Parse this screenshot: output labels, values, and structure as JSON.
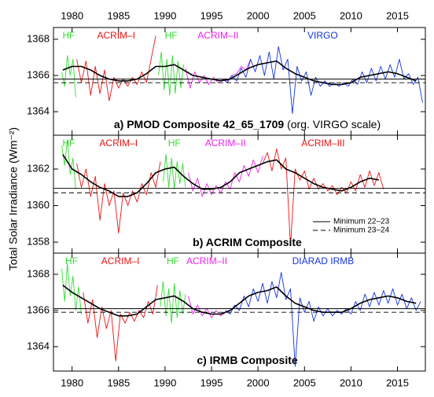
{
  "y_axis_label": "Total Solar Irradiance (Wm⁻²)",
  "chart_data": [
    {
      "type": "line",
      "title": "a) PMOD Composite 42_65_1709",
      "subtitle": "(org. VIRGO scale)",
      "xlim": [
        1978,
        2018
      ],
      "xticks": [
        1980,
        1985,
        1990,
        1995,
        2000,
        2005,
        2010,
        2015
      ],
      "ylim": [
        1362.7,
        1368.65
      ],
      "yticks": [
        1364,
        1366,
        1368
      ],
      "reference_lines": [
        {
          "value": 1365.8,
          "dash": false
        },
        {
          "value": 1365.6,
          "dash": true
        }
      ],
      "series": [
        {
          "name": "HF",
          "color": "#33dd33",
          "x": [
            1978.9,
            1979.2,
            1979.5,
            1979.8,
            1980.1,
            1980.4
          ],
          "values": [
            1366.2,
            1365.4,
            1367.1,
            1366.0,
            1366.9,
            1364.8
          ]
        },
        {
          "name": "ACRIM–I",
          "color": "#ee1111",
          "x": [
            1980.5,
            1981,
            1981.5,
            1982,
            1982.5,
            1983,
            1983.5,
            1984,
            1984.5,
            1985,
            1985.5,
            1986,
            1986.5,
            1987,
            1987.5,
            1988,
            1988.5,
            1989
          ],
          "values": [
            1366.9,
            1365.6,
            1366.8,
            1364.9,
            1366.5,
            1365.0,
            1366.3,
            1364.6,
            1365.9,
            1365.3,
            1365.8,
            1365.4,
            1365.9,
            1365.5,
            1366.2,
            1365.6,
            1366.9,
            1368.2
          ]
        },
        {
          "name": "HF",
          "color": "#33dd33",
          "x": [
            1989.3,
            1989.6,
            1989.9,
            1990.2,
            1990.5,
            1990.8,
            1991.1,
            1991.4,
            1991.7,
            1992.0
          ],
          "values": [
            1366.0,
            1367.3,
            1365.2,
            1366.9,
            1364.9,
            1367.1,
            1365.0,
            1366.8,
            1365.3,
            1366.6
          ]
        },
        {
          "name": "ACRIM–II",
          "color": "#ee22ee",
          "x": [
            1992.2,
            1992.7,
            1993.2,
            1993.7,
            1994.2,
            1994.7,
            1995.2,
            1995.7,
            1996.2,
            1996.7,
            1997.2,
            1997.7,
            1998.2,
            1998.7,
            1999.2
          ],
          "values": [
            1366.4,
            1365.3,
            1366.2,
            1365.6,
            1366.0,
            1365.5,
            1365.9,
            1365.6,
            1365.8,
            1365.7,
            1366.0,
            1366.1,
            1366.5,
            1366.3,
            1366.9
          ]
        },
        {
          "name": "VIRGO",
          "color": "#1133dd",
          "x": [
            1996.2,
            1996.7,
            1997.2,
            1997.7,
            1998.2,
            1998.7,
            1999.2,
            1999.7,
            2000.2,
            2000.7,
            2001.2,
            2001.7,
            2002.2,
            2002.7,
            2003.2,
            2003.7,
            2004.2,
            2004.7,
            2005.2,
            2005.7,
            2006.2,
            2006.7,
            2007.2,
            2007.7,
            2008.2,
            2008.7,
            2009.2,
            2009.7,
            2010.2,
            2010.7,
            2011.2,
            2011.7,
            2012.2,
            2012.7,
            2013.2,
            2013.7,
            2014.2,
            2014.7,
            2015.2,
            2015.7,
            2016.2,
            2016.7,
            2017.2,
            2017.7
          ],
          "values": [
            1365.8,
            1365.6,
            1366.0,
            1365.7,
            1366.4,
            1365.9,
            1366.9,
            1366.2,
            1367.1,
            1366.0,
            1367.3,
            1365.8,
            1367.6,
            1366.3,
            1366.9,
            1363.9,
            1366.5,
            1365.7,
            1366.2,
            1364.9,
            1365.9,
            1365.4,
            1365.7,
            1365.4,
            1365.6,
            1365.4,
            1365.6,
            1365.4,
            1365.8,
            1365.5,
            1366.2,
            1365.6,
            1366.4,
            1365.7,
            1366.5,
            1365.8,
            1366.6,
            1365.9,
            1366.9,
            1365.8,
            1366.1,
            1365.5,
            1365.9,
            1364.5
          ]
        },
        {
          "color": "#000000",
          "x": [
            1979,
            1980,
            1981,
            1982,
            1983,
            1984,
            1985,
            1986,
            1987,
            1988,
            1989,
            1990,
            1991,
            1992,
            1993,
            1994,
            1995,
            1996,
            1997,
            1998,
            1999,
            2000,
            2001,
            2002,
            2003,
            2004,
            2005,
            2006,
            2007,
            2008,
            2009,
            2010,
            2011,
            2012,
            2013,
            2014,
            2015,
            2016,
            2017
          ],
          "values": [
            1366.3,
            1366.5,
            1366.5,
            1366.3,
            1366.0,
            1365.8,
            1365.7,
            1365.7,
            1365.8,
            1366.1,
            1366.5,
            1366.5,
            1366.6,
            1366.3,
            1366.0,
            1365.9,
            1365.8,
            1365.7,
            1365.8,
            1366.1,
            1366.4,
            1366.6,
            1366.7,
            1366.8,
            1366.4,
            1366.1,
            1365.9,
            1365.7,
            1365.6,
            1365.5,
            1365.5,
            1365.6,
            1365.9,
            1366.0,
            1366.1,
            1366.2,
            1366.1,
            1365.9,
            1365.7
          ]
        }
      ]
    },
    {
      "type": "line",
      "title": "b) ACRIM Composite",
      "xlim": [
        1978,
        2018
      ],
      "xticks": [
        1980,
        1985,
        1990,
        1995,
        2000,
        2005,
        2010,
        2015
      ],
      "ylim": [
        1357.4,
        1363.85
      ],
      "yticks": [
        1358,
        1360,
        1362
      ],
      "reference_lines": [
        {
          "name": "Minimum 22–23",
          "value": 1360.95,
          "dash": false
        },
        {
          "name": "Minimum 23–24",
          "value": 1360.7,
          "dash": true
        }
      ],
      "series": [
        {
          "name": "HF",
          "color": "#33dd33",
          "x": [
            1978.9,
            1979.2,
            1979.5,
            1979.8,
            1980.1,
            1980.4
          ],
          "values": [
            1363.3,
            1362.2,
            1363.6,
            1361.7,
            1362.6,
            1360.9
          ]
        },
        {
          "name": "ACRIM–I",
          "color": "#ee1111",
          "x": [
            1980.5,
            1981,
            1981.5,
            1982,
            1982.5,
            1983,
            1983.5,
            1984,
            1984.5,
            1985,
            1985.5,
            1986,
            1986.5,
            1987,
            1987.5,
            1988,
            1988.5,
            1989,
            1989.5
          ],
          "values": [
            1362.3,
            1361.0,
            1362.0,
            1360.5,
            1361.6,
            1359.2,
            1361.2,
            1360.0,
            1360.8,
            1358.5,
            1360.7,
            1360.0,
            1360.8,
            1360.2,
            1361.2,
            1360.6,
            1361.8,
            1361.0,
            1362.4
          ]
        },
        {
          "name": "HF",
          "color": "#33dd33",
          "x": [
            1989.8,
            1990.1,
            1990.4,
            1990.7,
            1991.0,
            1991.3,
            1991.6,
            1991.9,
            1992.2
          ],
          "values": [
            1361.3,
            1362.8,
            1361.0,
            1362.6,
            1360.9,
            1362.4,
            1361.2,
            1362.3,
            1361.0
          ]
        },
        {
          "name": "ACRIM–II",
          "color": "#ee22ee",
          "x": [
            1992.5,
            1993,
            1993.5,
            1994,
            1994.5,
            1995,
            1995.5,
            1996,
            1996.5,
            1997,
            1997.5,
            1998,
            1998.5,
            1999,
            1999.5,
            2000,
            2000.5
          ],
          "values": [
            1361.8,
            1360.8,
            1361.5,
            1360.5,
            1361.2,
            1360.6,
            1361.1,
            1360.7,
            1361.3,
            1360.9,
            1361.8,
            1361.3,
            1362.2,
            1361.6,
            1362.5,
            1361.8,
            1362.7
          ]
        },
        {
          "name": "ACRIM–III",
          "color": "#ee1111",
          "x": [
            2000.5,
            2001,
            2001.5,
            2002,
            2002.5,
            2003,
            2003.5,
            2004,
            2004.5,
            2005,
            2005.5,
            2006,
            2006.5,
            2007,
            2007.5,
            2008,
            2008.5,
            2009,
            2009.5,
            2010,
            2010.5,
            2011,
            2011.5,
            2012,
            2012.5,
            2013,
            2013.5
          ],
          "values": [
            1362.3,
            1362.9,
            1361.9,
            1363.1,
            1362.0,
            1362.6,
            1357.8,
            1362.0,
            1361.4,
            1361.9,
            1360.9,
            1361.5,
            1360.9,
            1361.2,
            1360.8,
            1361.1,
            1360.6,
            1361.0,
            1360.7,
            1361.3,
            1360.8,
            1361.7,
            1361.0,
            1361.9,
            1361.1,
            1361.8,
            1360.9
          ]
        },
        {
          "color": "#000000",
          "x": [
            1979,
            1980,
            1981,
            1982,
            1983,
            1984,
            1985,
            1986,
            1987,
            1988,
            1989,
            1990,
            1991,
            1992,
            1993,
            1994,
            1995,
            1996,
            1997,
            1998,
            1999,
            2000,
            2001,
            2002,
            2003,
            2004,
            2005,
            2006,
            2007,
            2008,
            2009,
            2010,
            2011,
            2012,
            2013
          ],
          "values": [
            1362.8,
            1362.0,
            1361.7,
            1361.3,
            1361.0,
            1360.8,
            1360.5,
            1360.5,
            1360.7,
            1361.2,
            1361.8,
            1362.0,
            1362.1,
            1361.6,
            1361.2,
            1360.9,
            1360.9,
            1361.0,
            1361.3,
            1361.8,
            1362.0,
            1362.2,
            1362.4,
            1362.5,
            1362.0,
            1361.8,
            1361.5,
            1361.2,
            1361.0,
            1360.9,
            1360.8,
            1361.0,
            1361.3,
            1361.5,
            1361.4
          ]
        }
      ]
    },
    {
      "type": "line",
      "title": "c) IRMB Composite",
      "xlim": [
        1978,
        2018
      ],
      "xticks": [
        1980,
        1985,
        1990,
        1995,
        2000,
        2005,
        2010,
        2015
      ],
      "ylim": [
        1362.65,
        1369.17
      ],
      "yticks": [
        1364,
        1366,
        1368
      ],
      "reference_lines": [
        {
          "value": 1366.1,
          "dash": false
        },
        {
          "value": 1365.9,
          "dash": true
        }
      ],
      "series": [
        {
          "name": "HF",
          "color": "#33dd33",
          "x": [
            1978.9,
            1979.2,
            1979.5,
            1979.8,
            1980.1,
            1980.4,
            1980.7,
            1981.0
          ],
          "values": [
            1368.3,
            1366.5,
            1368.6,
            1366.8,
            1367.9,
            1366.0,
            1367.3,
            1365.8
          ]
        },
        {
          "name": "ACRIM–I",
          "color": "#ee1111",
          "x": [
            1981.2,
            1981.7,
            1982.2,
            1982.7,
            1983.2,
            1983.7,
            1984.2,
            1984.7,
            1985.2,
            1985.7,
            1986.2,
            1986.7,
            1987.2,
            1987.7,
            1988.2,
            1988.7,
            1989.2
          ],
          "values": [
            1367.0,
            1365.3,
            1366.6,
            1364.5,
            1366.2,
            1365.0,
            1366.0,
            1363.2,
            1365.8,
            1365.3,
            1365.9,
            1365.4,
            1366.0,
            1365.6,
            1366.5,
            1365.8,
            1367.4
          ]
        },
        {
          "name": "HF",
          "color": "#33dd33",
          "x": [
            1989.5,
            1989.8,
            1990.1,
            1990.4,
            1990.7,
            1991.0,
            1991.3,
            1991.6,
            1991.9,
            1992.2
          ],
          "values": [
            1366.2,
            1367.6,
            1365.7,
            1367.2,
            1365.3,
            1367.5,
            1365.6,
            1367.1,
            1365.8,
            1366.9
          ]
        },
        {
          "name": "ACRIM–II",
          "color": "#ee22ee",
          "x": [
            1992.5,
            1993,
            1993.5,
            1994,
            1994.5,
            1995,
            1995.5,
            1996,
            1996.5
          ],
          "values": [
            1366.8,
            1365.8,
            1366.3,
            1365.7,
            1366.1,
            1365.6,
            1366.0,
            1365.7,
            1365.9
          ]
        },
        {
          "name": "DIARAD IRMB",
          "color": "#1133dd",
          "x": [
            1996.5,
            1997,
            1997.5,
            1998,
            1998.5,
            1999,
            1999.5,
            2000,
            2000.5,
            2001,
            2001.5,
            2002,
            2002.5,
            2003,
            2003.5,
            2004,
            2004.5,
            2005,
            2005.5,
            2006,
            2006.5,
            2007,
            2007.5,
            2008,
            2008.5,
            2009,
            2009.5,
            2010,
            2010.5,
            2011,
            2011.5,
            2012,
            2012.5,
            2013,
            2013.5,
            2014,
            2014.5,
            2015,
            2015.5,
            2016,
            2016.5,
            2017,
            2017.5
          ],
          "values": [
            1366.0,
            1365.8,
            1366.3,
            1366.0,
            1366.8,
            1366.2,
            1367.2,
            1366.5,
            1367.5,
            1366.4,
            1367.6,
            1366.7,
            1368.1,
            1366.6,
            1367.2,
            1362.9,
            1366.7,
            1365.9,
            1366.5,
            1365.4,
            1366.2,
            1365.7,
            1366.1,
            1365.7,
            1366.0,
            1365.8,
            1366.1,
            1365.8,
            1366.5,
            1366.0,
            1366.9,
            1366.2,
            1367.0,
            1366.3,
            1367.1,
            1366.4,
            1367.2,
            1366.3,
            1366.9,
            1366.1,
            1366.7,
            1366.0,
            1366.5
          ]
        },
        {
          "color": "#000000",
          "x": [
            1979,
            1980,
            1981,
            1982,
            1983,
            1984,
            1985,
            1986,
            1987,
            1988,
            1989,
            1990,
            1991,
            1992,
            1993,
            1994,
            1995,
            1996,
            1997,
            1998,
            1999,
            2000,
            2001,
            2002,
            2003,
            2004,
            2005,
            2006,
            2007,
            2008,
            2009,
            2010,
            2011,
            2012,
            2013,
            2014,
            2015,
            2016,
            2017
          ],
          "values": [
            1367.4,
            1367.0,
            1366.7,
            1366.4,
            1366.1,
            1365.9,
            1365.7,
            1365.7,
            1365.8,
            1366.2,
            1366.6,
            1366.7,
            1366.8,
            1366.5,
            1366.1,
            1365.9,
            1365.8,
            1365.8,
            1366.0,
            1366.4,
            1366.8,
            1367.0,
            1367.1,
            1367.3,
            1366.8,
            1366.4,
            1366.2,
            1366.0,
            1365.9,
            1365.9,
            1365.9,
            1366.1,
            1366.4,
            1366.6,
            1366.7,
            1366.8,
            1366.7,
            1366.5,
            1366.4
          ]
        }
      ]
    }
  ]
}
